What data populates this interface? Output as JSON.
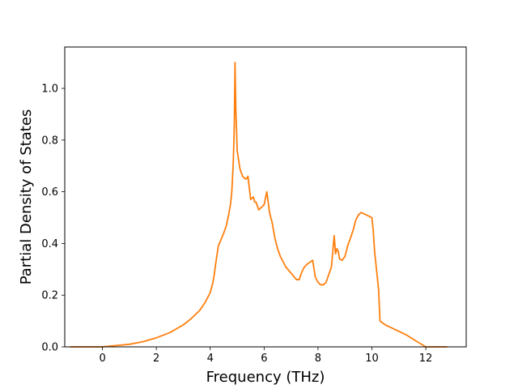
{
  "chart_data": {
    "type": "line",
    "title": "",
    "xlabel": "Frequency (THz)",
    "ylabel": "Partial Density of States",
    "xlim": [
      -1.4,
      13.5
    ],
    "ylim": [
      0.0,
      1.16
    ],
    "xticks": [
      0,
      2,
      4,
      6,
      8,
      10,
      12
    ],
    "yticks": [
      0.0,
      0.2,
      0.4,
      0.6,
      0.8,
      1.0
    ],
    "grid": false,
    "legend": "none",
    "series": [
      {
        "color": "#ff7f0e",
        "x": [
          -1.2,
          -0.5,
          0.0,
          0.5,
          1.0,
          1.5,
          2.0,
          2.5,
          3.0,
          3.3,
          3.6,
          3.8,
          4.0,
          4.1,
          4.15,
          4.2,
          4.3,
          4.5,
          4.6,
          4.7,
          4.75,
          4.8,
          4.85,
          4.88,
          4.9,
          4.92,
          4.95,
          5.0,
          5.1,
          5.2,
          5.3,
          5.35,
          5.4,
          5.5,
          5.6,
          5.65,
          5.7,
          5.8,
          5.9,
          6.0,
          6.1,
          6.2,
          6.3,
          6.4,
          6.5,
          6.6,
          6.8,
          7.0,
          7.2,
          7.3,
          7.4,
          7.5,
          7.6,
          7.8,
          7.9,
          8.0,
          8.1,
          8.2,
          8.3,
          8.4,
          8.5,
          8.6,
          8.65,
          8.7,
          8.75,
          8.8,
          8.9,
          9.0,
          9.1,
          9.2,
          9.3,
          9.4,
          9.5,
          9.6,
          9.8,
          10.0,
          10.05,
          10.1,
          10.15,
          10.2,
          10.25,
          10.3,
          10.5,
          11.0,
          11.3,
          11.6,
          12.0,
          12.5,
          12.8
        ],
        "y": [
          0.0,
          0.0,
          0.0,
          0.005,
          0.01,
          0.02,
          0.035,
          0.055,
          0.085,
          0.11,
          0.14,
          0.17,
          0.21,
          0.25,
          0.28,
          0.32,
          0.39,
          0.44,
          0.47,
          0.52,
          0.55,
          0.6,
          0.7,
          0.8,
          0.9,
          1.1,
          0.92,
          0.76,
          0.69,
          0.66,
          0.65,
          0.65,
          0.66,
          0.57,
          0.58,
          0.56,
          0.56,
          0.53,
          0.54,
          0.55,
          0.6,
          0.52,
          0.48,
          0.42,
          0.38,
          0.35,
          0.31,
          0.285,
          0.26,
          0.26,
          0.29,
          0.31,
          0.32,
          0.335,
          0.27,
          0.25,
          0.24,
          0.24,
          0.25,
          0.28,
          0.31,
          0.43,
          0.36,
          0.38,
          0.37,
          0.34,
          0.335,
          0.35,
          0.39,
          0.42,
          0.45,
          0.49,
          0.51,
          0.52,
          0.51,
          0.5,
          0.45,
          0.37,
          0.32,
          0.27,
          0.22,
          0.1,
          0.085,
          0.06,
          0.045,
          0.025,
          0.0,
          0.0,
          0.0
        ]
      }
    ]
  }
}
